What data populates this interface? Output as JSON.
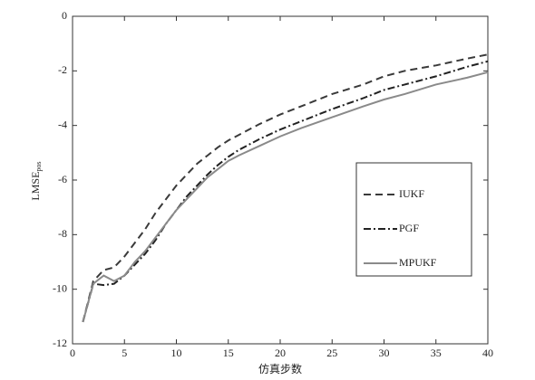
{
  "chart_data": {
    "type": "line",
    "xlabel": "仿真步数",
    "ylabel": "LMSE",
    "ylabel_subscript": "pos",
    "x": [
      1,
      2,
      3,
      4,
      5,
      6,
      7,
      8,
      9,
      10,
      11,
      12,
      13,
      14,
      15,
      16,
      18,
      20,
      22,
      25,
      28,
      30,
      32,
      35,
      38,
      40
    ],
    "series": [
      {
        "name": "IUKF",
        "color": "#3a3a3a",
        "dash": "8,5",
        "values": [
          -11.2,
          -9.7,
          -9.3,
          -9.2,
          -8.8,
          -8.3,
          -7.8,
          -7.2,
          -6.7,
          -6.2,
          -5.8,
          -5.4,
          -5.1,
          -4.8,
          -4.55,
          -4.35,
          -3.95,
          -3.6,
          -3.3,
          -2.85,
          -2.5,
          -2.2,
          -2.0,
          -1.8,
          -1.55,
          -1.4
        ]
      },
      {
        "name": "PGF",
        "color": "#222222",
        "dash": "8,3,2,3",
        "values": [
          -11.2,
          -9.8,
          -9.85,
          -9.8,
          -9.5,
          -9.1,
          -8.7,
          -8.2,
          -7.6,
          -7.1,
          -6.6,
          -6.2,
          -5.8,
          -5.45,
          -5.15,
          -4.9,
          -4.5,
          -4.15,
          -3.85,
          -3.4,
          -3.0,
          -2.7,
          -2.5,
          -2.2,
          -1.85,
          -1.65
        ]
      },
      {
        "name": "MPUKF",
        "color": "#8a8a8a",
        "dash": "none",
        "values": [
          -11.2,
          -9.8,
          -9.5,
          -9.7,
          -9.5,
          -9.0,
          -8.6,
          -8.1,
          -7.6,
          -7.1,
          -6.7,
          -6.3,
          -5.9,
          -5.6,
          -5.3,
          -5.1,
          -4.75,
          -4.4,
          -4.1,
          -3.7,
          -3.3,
          -3.05,
          -2.85,
          -2.5,
          -2.25,
          -2.05
        ]
      }
    ],
    "xlim": [
      0,
      40
    ],
    "xticks": [
      0,
      5,
      10,
      15,
      20,
      25,
      30,
      35,
      40
    ],
    "ylim": [
      -12,
      0
    ],
    "yticks": [
      -12,
      -10,
      -8,
      -6,
      -4,
      -2,
      0
    ],
    "legend": "right"
  }
}
